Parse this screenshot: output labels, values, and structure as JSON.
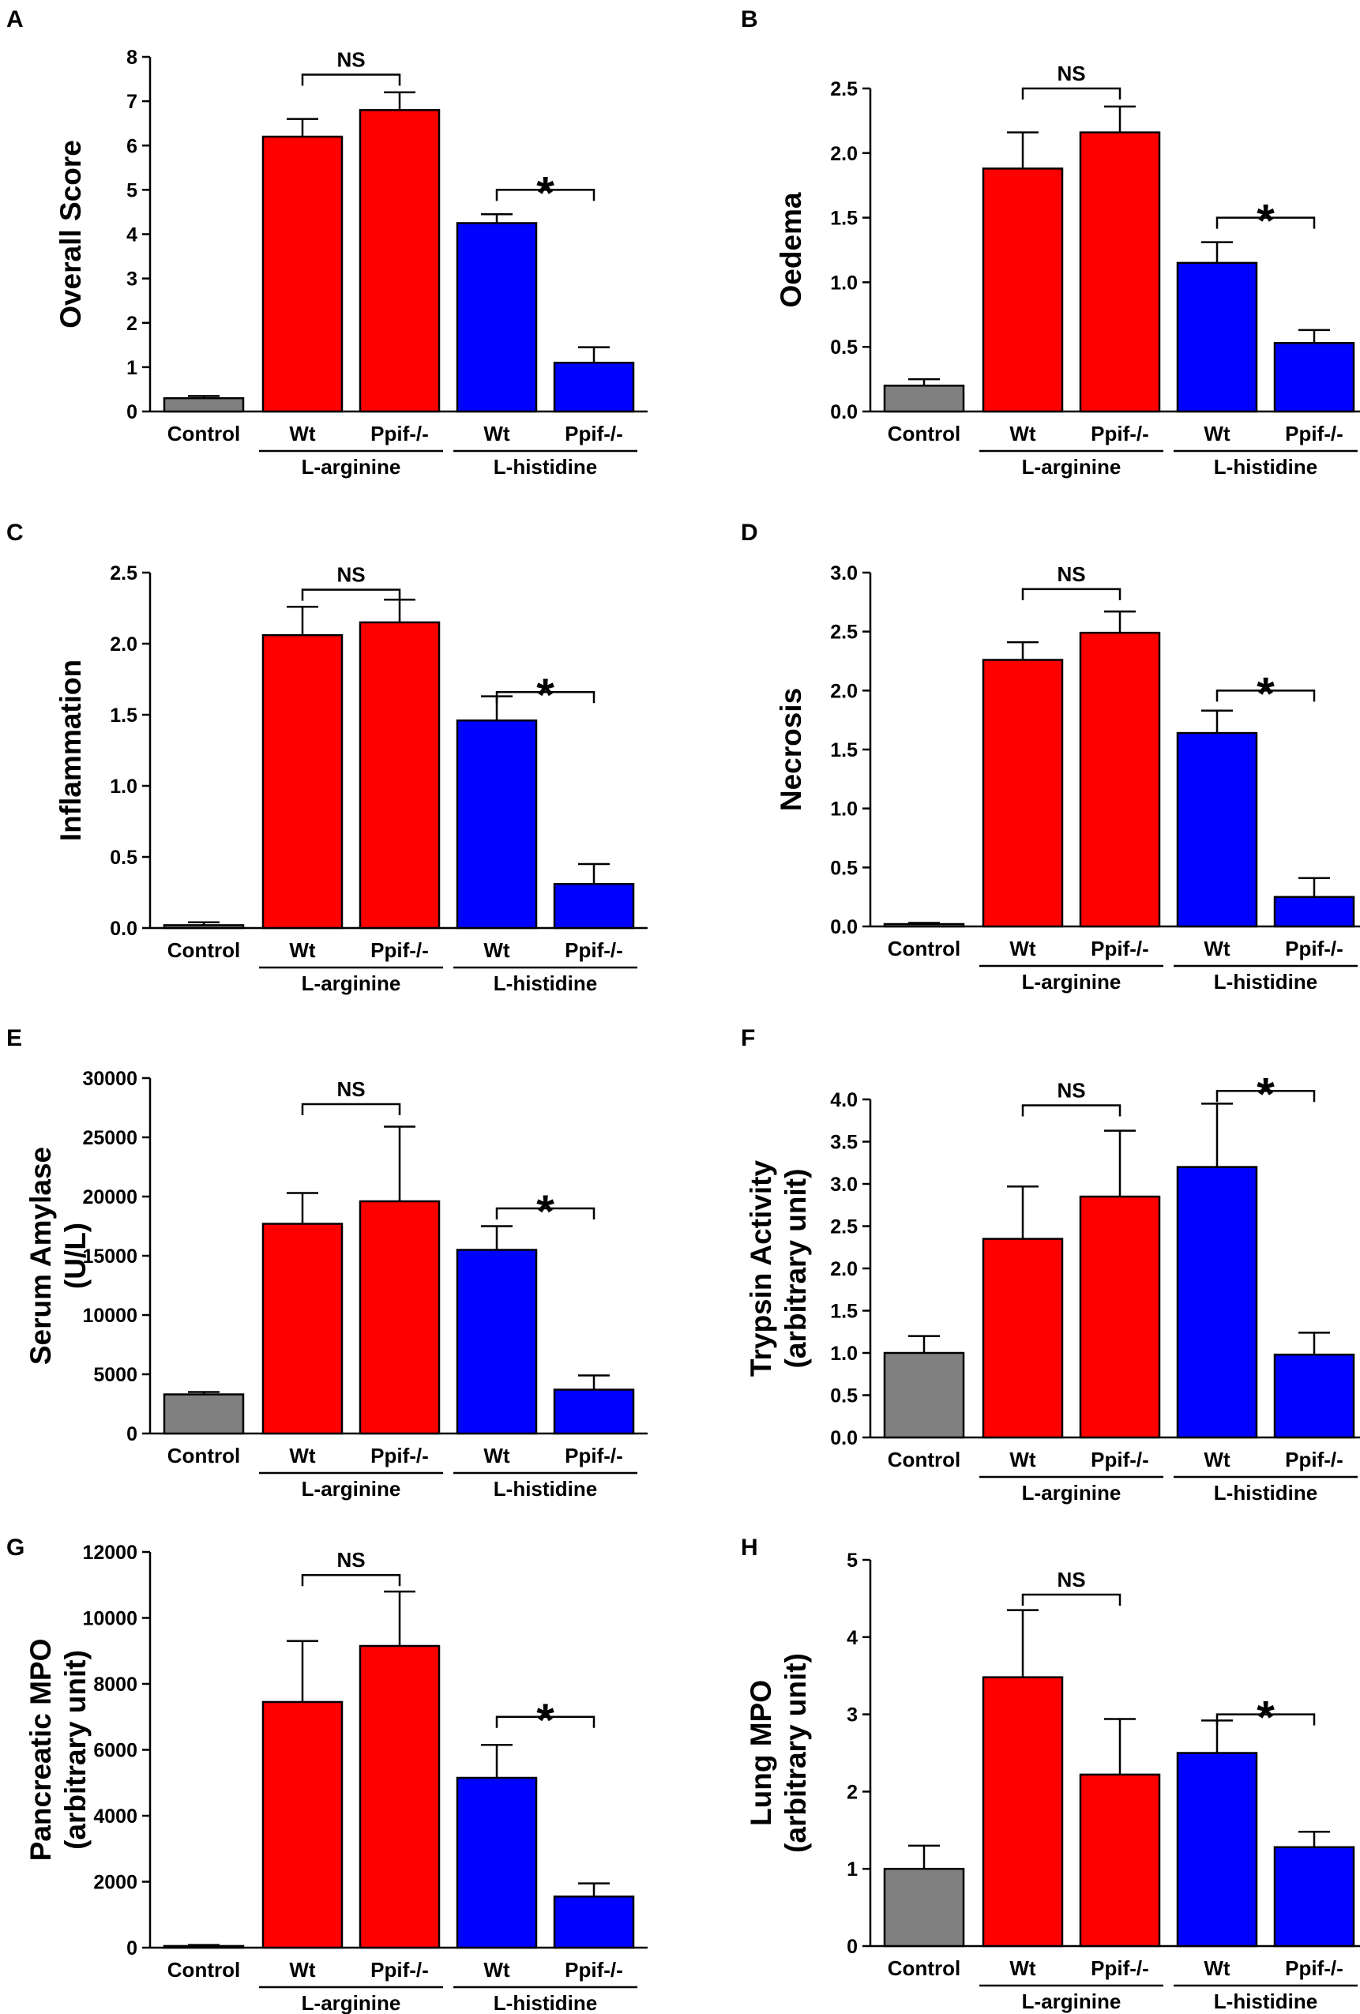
{
  "colors": {
    "control": "#808080",
    "arginine": "#ff0000",
    "histidine": "#0000ff",
    "ink": "#000000"
  },
  "chart_data": [
    {
      "panel_label": "A",
      "type": "bar",
      "ylabel": [
        "Overall Score"
      ],
      "categories": [
        "Control",
        "Wt",
        "Ppif-/-",
        "Wt",
        "Ppif-/-"
      ],
      "groups": [
        {
          "label": "L-arginine",
          "members": [
            1,
            2
          ]
        },
        {
          "label": "L-histidine",
          "members": [
            3,
            4
          ]
        }
      ],
      "values": [
        0.3,
        6.2,
        6.8,
        4.25,
        1.1
      ],
      "errors": [
        0.05,
        0.4,
        0.4,
        0.2,
        0.35
      ],
      "ylim": [
        0,
        8
      ],
      "yticks": [
        0,
        1,
        2,
        3,
        4,
        5,
        6,
        7,
        8
      ],
      "tick_labels": [
        "0",
        "1",
        "2",
        "3",
        "4",
        "5",
        "6",
        "7",
        "8"
      ],
      "comparisons": [
        {
          "between": [
            1,
            2
          ],
          "label": "NS",
          "level": 7.6
        },
        {
          "between": [
            3,
            4
          ],
          "label": "*",
          "level": 5.0
        }
      ]
    },
    {
      "panel_label": "B",
      "type": "bar",
      "ylabel": [
        "Oedema"
      ],
      "categories": [
        "Control",
        "Wt",
        "Ppif-/-",
        "Wt",
        "Ppif-/-"
      ],
      "groups": [
        {
          "label": "L-arginine",
          "members": [
            1,
            2
          ]
        },
        {
          "label": "L-histidine",
          "members": [
            3,
            4
          ]
        }
      ],
      "values": [
        0.2,
        1.88,
        2.16,
        1.15,
        0.53
      ],
      "errors": [
        0.05,
        0.28,
        0.2,
        0.16,
        0.1
      ],
      "ylim": [
        0,
        2.5
      ],
      "yticks": [
        0,
        0.5,
        1,
        1.5,
        2,
        2.5
      ],
      "tick_labels": [
        "0.0",
        "0.5",
        "1.0",
        "1.5",
        "2.0",
        "2.5"
      ],
      "comparisons": [
        {
          "between": [
            1,
            2
          ],
          "label": "NS",
          "level": 2.5
        },
        {
          "between": [
            3,
            4
          ],
          "label": "*",
          "level": 1.5
        }
      ]
    },
    {
      "panel_label": "C",
      "type": "bar",
      "ylabel": [
        "Inflammation"
      ],
      "categories": [
        "Control",
        "Wt",
        "Ppif-/-",
        "Wt",
        "Ppif-/-"
      ],
      "groups": [
        {
          "label": "L-arginine",
          "members": [
            1,
            2
          ]
        },
        {
          "label": "L-histidine",
          "members": [
            3,
            4
          ]
        }
      ],
      "values": [
        0.02,
        2.06,
        2.15,
        1.46,
        0.31
      ],
      "errors": [
        0.02,
        0.2,
        0.16,
        0.17,
        0.14
      ],
      "ylim": [
        0,
        2.5
      ],
      "yticks": [
        0,
        0.5,
        1,
        1.5,
        2,
        2.5
      ],
      "tick_labels": [
        "0.0",
        "0.5",
        "1.0",
        "1.5",
        "2.0",
        "2.5"
      ],
      "comparisons": [
        {
          "between": [
            1,
            2
          ],
          "label": "NS",
          "level": 2.38
        },
        {
          "between": [
            3,
            4
          ],
          "label": "*",
          "level": 1.66
        }
      ]
    },
    {
      "panel_label": "D",
      "type": "bar",
      "ylabel": [
        "Necrosis"
      ],
      "categories": [
        "Control",
        "Wt",
        "Ppif-/-",
        "Wt",
        "Ppif-/-"
      ],
      "groups": [
        {
          "label": "L-arginine",
          "members": [
            1,
            2
          ]
        },
        {
          "label": "L-histidine",
          "members": [
            3,
            4
          ]
        }
      ],
      "values": [
        0.02,
        2.26,
        2.49,
        1.64,
        0.25
      ],
      "errors": [
        0.01,
        0.15,
        0.18,
        0.19,
        0.16
      ],
      "ylim": [
        0,
        3
      ],
      "yticks": [
        0,
        0.5,
        1,
        1.5,
        2,
        2.5,
        3
      ],
      "tick_labels": [
        "0.0",
        "0.5",
        "1.0",
        "1.5",
        "2.0",
        "2.5",
        "3.0"
      ],
      "comparisons": [
        {
          "between": [
            1,
            2
          ],
          "label": "NS",
          "level": 2.86
        },
        {
          "between": [
            3,
            4
          ],
          "label": "*",
          "level": 2.0
        }
      ]
    },
    {
      "panel_label": "E",
      "type": "bar",
      "ylabel": [
        "Serum Amylase",
        "(U/L)"
      ],
      "categories": [
        "Control",
        "Wt",
        "Ppif-/-",
        "Wt",
        "Ppif-/-"
      ],
      "groups": [
        {
          "label": "L-arginine",
          "members": [
            1,
            2
          ]
        },
        {
          "label": "L-histidine",
          "members": [
            3,
            4
          ]
        }
      ],
      "values": [
        3300,
        17700,
        19600,
        15500,
        3700
      ],
      "errors": [
        200,
        2600,
        6300,
        2000,
        1200
      ],
      "ylim": [
        0,
        30000
      ],
      "yticks": [
        0,
        5000,
        10000,
        15000,
        20000,
        25000,
        30000
      ],
      "tick_labels": [
        "0",
        "5000",
        "10000",
        "15000",
        "20000",
        "25000",
        "30000"
      ],
      "comparisons": [
        {
          "between": [
            1,
            2
          ],
          "label": "NS",
          "level": 27800
        },
        {
          "between": [
            3,
            4
          ],
          "label": "*",
          "level": 19000
        }
      ]
    },
    {
      "panel_label": "F",
      "type": "bar",
      "ylabel": [
        "Trypsin Activity",
        "(arbitrary unit)"
      ],
      "categories": [
        "Control",
        "Wt",
        "Ppif-/-",
        "Wt",
        "Ppif-/-"
      ],
      "groups": [
        {
          "label": "L-arginine",
          "members": [
            1,
            2
          ]
        },
        {
          "label": "L-histidine",
          "members": [
            3,
            4
          ]
        }
      ],
      "values": [
        1.0,
        2.35,
        2.85,
        3.2,
        0.98
      ],
      "errors": [
        0.2,
        0.62,
        0.78,
        0.75,
        0.26
      ],
      "ylim": [
        0,
        4
      ],
      "yticks": [
        0,
        0.5,
        1,
        1.5,
        2,
        2.5,
        3,
        3.5,
        4
      ],
      "tick_labels": [
        "0.0",
        "0.5",
        "1.0",
        "1.5",
        "2.0",
        "2.5",
        "3.0",
        "3.5",
        "4.0"
      ],
      "comparisons": [
        {
          "between": [
            1,
            2
          ],
          "label": "NS",
          "level": 3.93
        },
        {
          "between": [
            3,
            4
          ],
          "label": "*",
          "level": 4.1
        }
      ]
    },
    {
      "panel_label": "G",
      "type": "bar",
      "ylabel": [
        "Pancreatic MPO",
        "(arbitrary unit)"
      ],
      "categories": [
        "Control",
        "Wt",
        "Ppif-/-",
        "Wt",
        "Ppif-/-"
      ],
      "groups": [
        {
          "label": "L-arginine",
          "members": [
            1,
            2
          ]
        },
        {
          "label": "L-histidine",
          "members": [
            3,
            4
          ]
        }
      ],
      "values": [
        50,
        7450,
        9150,
        5150,
        1550
      ],
      "errors": [
        30,
        1850,
        1650,
        1000,
        400
      ],
      "ylim": [
        0,
        12000
      ],
      "yticks": [
        0,
        2000,
        4000,
        6000,
        8000,
        10000,
        12000
      ],
      "tick_labels": [
        "0",
        "2000",
        "4000",
        "6000",
        "8000",
        "10000",
        "12000"
      ],
      "comparisons": [
        {
          "between": [
            1,
            2
          ],
          "label": "NS",
          "level": 11300
        },
        {
          "between": [
            3,
            4
          ],
          "label": "*",
          "level": 7000
        }
      ]
    },
    {
      "panel_label": "H",
      "type": "bar",
      "ylabel": [
        "Lung MPO",
        "(arbitrary unit)"
      ],
      "categories": [
        "Control",
        "Wt",
        "Ppif-/-",
        "Wt",
        "Ppif-/-"
      ],
      "groups": [
        {
          "label": "L-arginine",
          "members": [
            1,
            2
          ]
        },
        {
          "label": "L-histidine",
          "members": [
            3,
            4
          ]
        }
      ],
      "values": [
        1.0,
        3.48,
        2.22,
        2.5,
        1.28
      ],
      "errors": [
        0.3,
        0.87,
        0.72,
        0.42,
        0.2
      ],
      "ylim": [
        0,
        5
      ],
      "yticks": [
        0,
        1,
        2,
        3,
        4,
        5
      ],
      "tick_labels": [
        "0",
        "1",
        "2",
        "3",
        "4",
        "5"
      ],
      "comparisons": [
        {
          "between": [
            1,
            2
          ],
          "label": "NS",
          "level": 4.55
        },
        {
          "between": [
            3,
            4
          ],
          "label": "*",
          "level": 3.0
        }
      ]
    }
  ]
}
